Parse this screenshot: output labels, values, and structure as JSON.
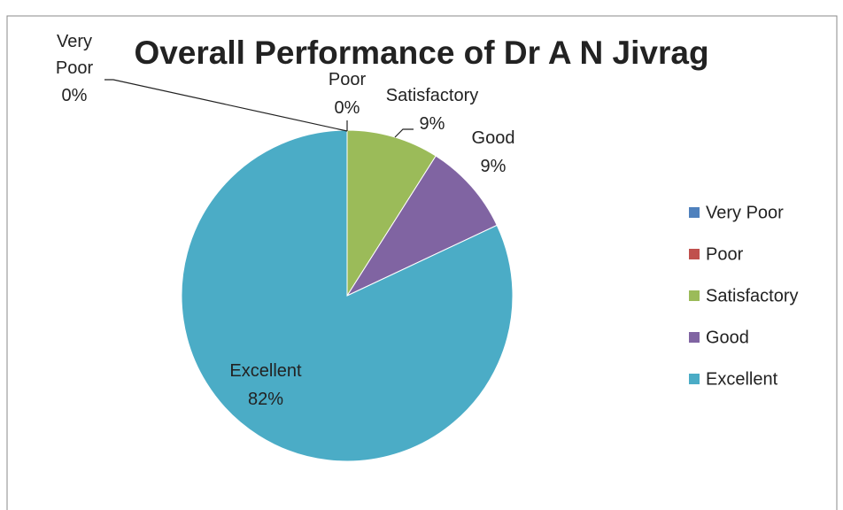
{
  "chart_data": {
    "type": "pie",
    "title": "Overall Performance of Dr A N Jivrag",
    "categories": [
      "Very Poor",
      "Poor",
      "Satisfactory",
      "Good",
      "Excellent"
    ],
    "values": [
      0,
      0,
      9,
      9,
      82
    ],
    "value_labels": [
      "0%",
      "0%",
      "9%",
      "9%",
      "82%"
    ],
    "colors": [
      "#4f81bd",
      "#c0504d",
      "#9bbb59",
      "#8064a2",
      "#4bacc6"
    ],
    "legend": "right"
  }
}
